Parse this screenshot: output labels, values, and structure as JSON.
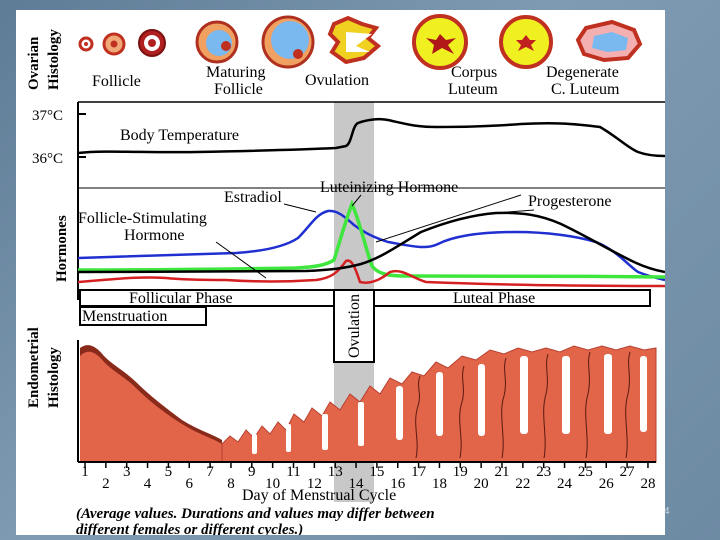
{
  "figure": {
    "ovarian": {
      "axis_label_1": "Ovarian",
      "axis_label_2": "Histology",
      "stages": [
        "Follicle",
        "Maturing",
        "Follicle",
        "Ovulation",
        "Corpus",
        "Luteum",
        "Degenerate",
        "C. Luteum"
      ]
    },
    "temperature": {
      "high_label": "37°C",
      "low_label": "36°C",
      "title": "Body Temperature"
    },
    "hormones": {
      "axis_label": "Hormones",
      "estradiol": "Estradiol",
      "lh": "Luteinizing  Hormone",
      "progesterone": "Progesterone",
      "fsh_1": "Follicle-Stimulating",
      "fsh_2": "Hormone"
    },
    "phases": {
      "follicular": "Follicular Phase",
      "luteal": "Luteal Phase",
      "menstruation": "Menstruation",
      "ovulation": "Ovulation"
    },
    "endometrial": {
      "axis_label_1": "Endometrial",
      "axis_label_2": "Histology"
    },
    "days": [
      "1",
      "2",
      "3",
      "4",
      "5",
      "6",
      "7",
      "8",
      "9",
      "10",
      "11",
      "12",
      "13",
      "14",
      "15",
      "16",
      "17",
      "18",
      "19",
      "20",
      "21",
      "22",
      "23",
      "24",
      "25",
      "26",
      "27",
      "28"
    ],
    "x_axis_label": "Day of Menstrual Cycle",
    "note_line_1": "(Average values. Durations and values may differ between",
    "note_line_2": "different females or different cycles.)",
    "colors": {
      "estradiol": "#1f2fd0",
      "lh": "#3ee63e",
      "fsh": "#d42020",
      "progesterone": "#000000",
      "endometrium": "#e2654a",
      "endometrium_dark": "#8a2a1a",
      "ovulation_band": "#c8c8c8"
    }
  },
  "page_number": "4"
}
